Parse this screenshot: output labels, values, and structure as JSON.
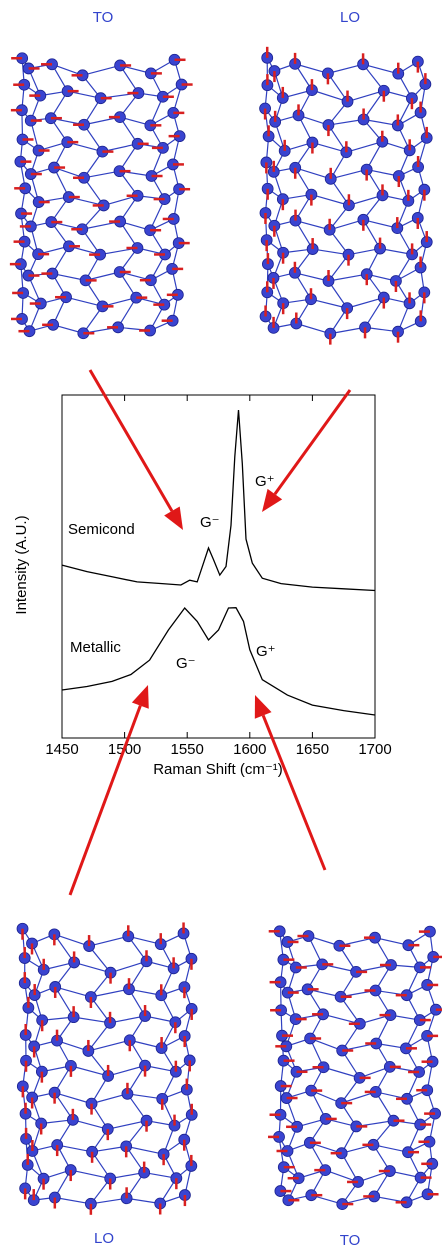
{
  "chart_data": {
    "type": "line",
    "x_label": "Raman Shift (cm⁻¹)",
    "y_label": "Intensity (A.U.)",
    "xlim": [
      1450,
      1700
    ],
    "xticks": [
      1450,
      1500,
      1550,
      1600,
      1650,
      1700
    ],
    "ylim": [
      0,
      100
    ],
    "series": [
      {
        "name": "Semicond",
        "color": "#000000",
        "x": [
          1450,
          1470,
          1490,
          1510,
          1530,
          1545,
          1552,
          1558,
          1563,
          1567,
          1571,
          1576,
          1581,
          1585,
          1588,
          1591,
          1594,
          1597,
          1602,
          1610,
          1625,
          1650,
          1675,
          1700
        ],
        "values": [
          50.4,
          48.5,
          47.0,
          45.5,
          45.0,
          44.6,
          46.0,
          45.5,
          51.0,
          55.4,
          52.0,
          47.5,
          50.0,
          62.0,
          82.0,
          95.6,
          80.0,
          58.0,
          51.0,
          46.6,
          45.0,
          44.0,
          43.5,
          43.0
        ]
      },
      {
        "name": "Metallic",
        "color": "#000000",
        "x": [
          1450,
          1470,
          1490,
          1505,
          1520,
          1535,
          1548,
          1558,
          1567,
          1575,
          1583,
          1589,
          1595,
          1600,
          1610,
          1630,
          1650,
          1675,
          1700
        ],
        "values": [
          14.0,
          15.0,
          16.5,
          18.5,
          22.7,
          31.5,
          37.9,
          34.0,
          28.6,
          31.5,
          37.9,
          38.0,
          34.0,
          25.7,
          17.0,
          12.5,
          9.6,
          8.0,
          6.7
        ]
      }
    ],
    "annotations": [
      "G⁻",
      "G⁺",
      "G⁻",
      "G⁺"
    ],
    "mode_labels": [
      "TO",
      "LO",
      "LO",
      "TO"
    ]
  }
}
